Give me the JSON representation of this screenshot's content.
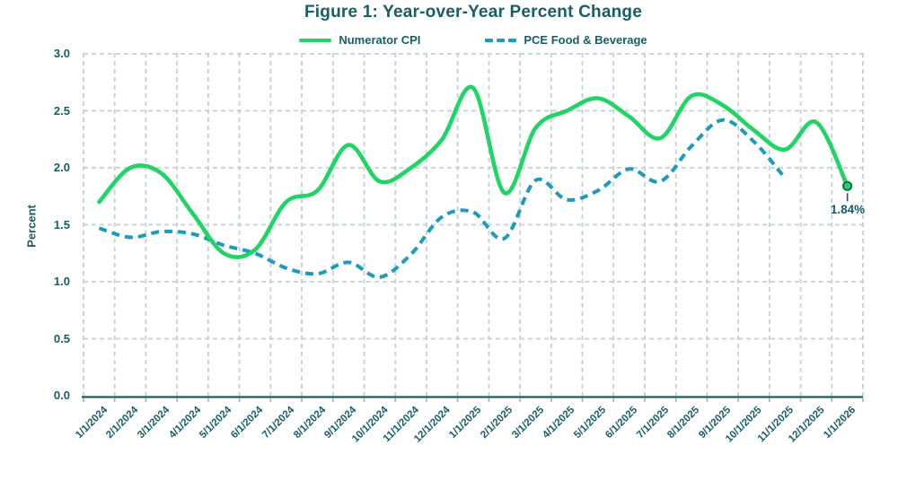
{
  "chart_data": {
    "type": "line",
    "title": "Figure 1: Year-over-Year Percent Change",
    "ylabel": "Percent",
    "ylim": [
      0.0,
      3.0
    ],
    "y_ticks": [
      "3.0",
      "2.5",
      "2.0",
      "1.5",
      "1.0",
      "0.5",
      "0.0"
    ],
    "x": [
      "1/1/2024",
      "2/1/2024",
      "3/1/2024",
      "4/1/2024",
      "5/1/2024",
      "6/1/2024",
      "7/1/2024",
      "8/1/2024",
      "9/1/2024",
      "10/1/2024",
      "11/1/2024",
      "12/1/2024",
      "1/1/2025",
      "2/1/2025",
      "3/1/2025",
      "4/1/2025",
      "5/1/2025",
      "6/1/2025",
      "7/1/2025",
      "8/1/2025",
      "9/1/2025",
      "10/1/2025",
      "11/1/2025",
      "12/1/2025",
      "1/1/2026"
    ],
    "series": [
      {
        "name": "Numerator CPI",
        "style": "solid",
        "color": "#20D565",
        "values": [
          1.7,
          2.0,
          1.95,
          1.6,
          1.25,
          1.28,
          1.7,
          1.8,
          2.2,
          1.88,
          2.0,
          2.25,
          2.7,
          1.78,
          2.35,
          2.5,
          2.61,
          2.45,
          2.26,
          2.63,
          2.55,
          2.33,
          2.16,
          2.4,
          1.84
        ]
      },
      {
        "name": "PCE Food & Beverage",
        "style": "dashed",
        "color": "#1C9CBD",
        "values": [
          1.47,
          1.39,
          1.44,
          1.42,
          1.32,
          1.25,
          1.12,
          1.07,
          1.17,
          1.04,
          1.24,
          1.57,
          1.61,
          1.38,
          1.89,
          1.72,
          1.8,
          1.99,
          1.88,
          2.19,
          2.42,
          2.23,
          1.91
        ]
      }
    ],
    "end_label": "1.84%",
    "grid": true,
    "legend_position": "top-center",
    "colors": {
      "text": "#175E68",
      "grid": "#C2D2D6",
      "axis": "#175E68",
      "axis_tick": "#8FB8BE",
      "marker_outline": "#156B50",
      "background": "#FFFFFF"
    }
  }
}
